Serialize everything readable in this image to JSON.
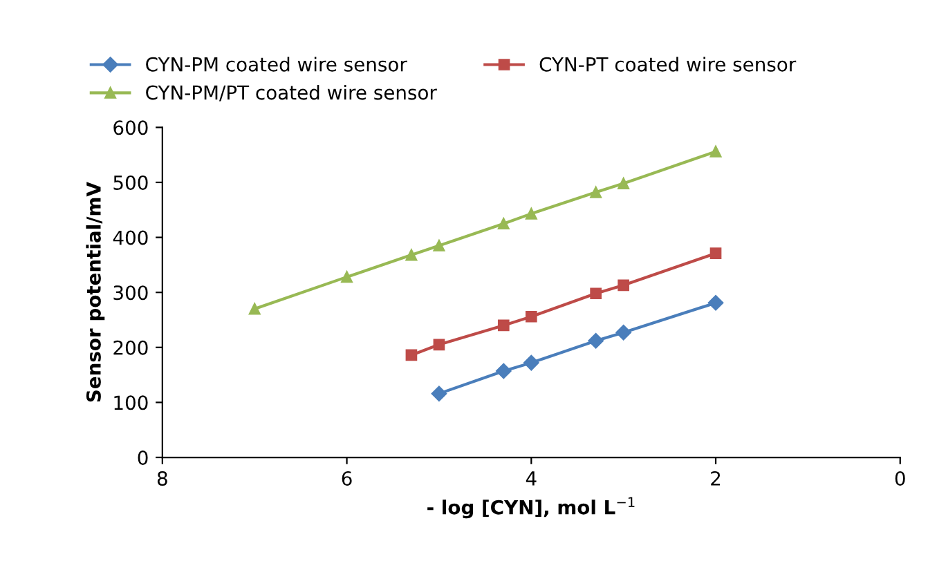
{
  "chart_data": {
    "type": "line",
    "xlabel": "- log [CYN], mol L$^{−1}$",
    "ylabel": "Sensor potential/mV",
    "xlim": [
      8,
      0
    ],
    "xticks": [
      8,
      6,
      4,
      2,
      0
    ],
    "ylim": [
      0,
      600
    ],
    "yticks": [
      0,
      100,
      200,
      300,
      400,
      500,
      600
    ],
    "grid": false,
    "legend": "top",
    "series": [
      {
        "name": "CYN-PM coated wire sensor",
        "color": "#4a7ebb",
        "marker": "diamond",
        "x": [
          5,
          4.3,
          4,
          3.3,
          3,
          2
        ],
        "values": [
          116,
          157,
          172,
          212,
          227,
          281
        ]
      },
      {
        "name": "CYN-PT coated wire sensor",
        "color": "#be4b48",
        "marker": "square",
        "x": [
          5.3,
          5,
          4.3,
          4,
          3.3,
          3,
          2
        ],
        "values": [
          186,
          205,
          240,
          256,
          298,
          313,
          371
        ]
      },
      {
        "name": "CYN-PM/PT coated wire sensor",
        "color": "#98b954",
        "marker": "triangle",
        "x": [
          7,
          6,
          5.3,
          5,
          4.3,
          4,
          3.3,
          3,
          2
        ],
        "values": [
          270,
          328,
          368,
          385,
          425,
          443,
          482,
          498,
          556
        ]
      }
    ]
  }
}
